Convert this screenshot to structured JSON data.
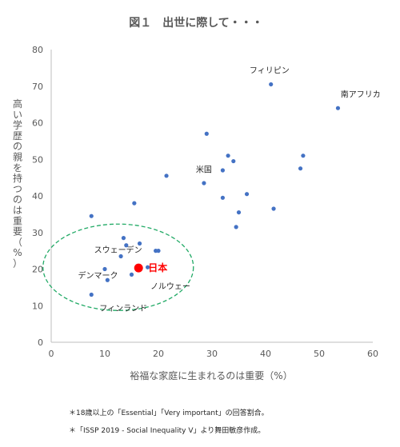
{
  "chart_data": {
    "type": "scatter",
    "title": "図１　出世に際して・・・",
    "xlabel": "裕福な家庭に生まれるのは重要（%）",
    "ylabel": "高い学歴の親を持つのは重要（%）",
    "xlim": [
      0,
      60
    ],
    "ylim": [
      0,
      80
    ],
    "x_ticks": [
      "0",
      "10",
      "20",
      "30",
      "40",
      "50",
      "60"
    ],
    "y_ticks": [
      "0",
      "10",
      "20",
      "30",
      "40",
      "50",
      "60",
      "70",
      "80"
    ],
    "grid": false,
    "points": [
      {
        "x": 7.5,
        "y": 34.5
      },
      {
        "x": 7.5,
        "y": 13
      },
      {
        "x": 10,
        "y": 20
      },
      {
        "x": 10.5,
        "y": 17
      },
      {
        "x": 13,
        "y": 23.5
      },
      {
        "x": 13.5,
        "y": 28.5
      },
      {
        "x": 14,
        "y": 26.5
      },
      {
        "x": 15,
        "y": 18.5
      },
      {
        "x": 15.5,
        "y": 38
      },
      {
        "x": 16.5,
        "y": 27
      },
      {
        "x": 18,
        "y": 20.5
      },
      {
        "x": 19.5,
        "y": 25
      },
      {
        "x": 20,
        "y": 25
      },
      {
        "x": 21.5,
        "y": 45.5
      },
      {
        "x": 28.5,
        "y": 43.5
      },
      {
        "x": 29,
        "y": 57
      },
      {
        "x": 32,
        "y": 47
      },
      {
        "x": 32,
        "y": 39.5
      },
      {
        "x": 33,
        "y": 51
      },
      {
        "x": 34,
        "y": 49.5
      },
      {
        "x": 34.5,
        "y": 31.5
      },
      {
        "x": 35,
        "y": 35.5
      },
      {
        "x": 36.5,
        "y": 40.5
      },
      {
        "x": 41,
        "y": 70.5
      },
      {
        "x": 41.5,
        "y": 36.5
      },
      {
        "x": 46.5,
        "y": 47.5
      },
      {
        "x": 47,
        "y": 51
      },
      {
        "x": 53.5,
        "y": 64
      }
    ],
    "highlight": {
      "x": 16.3,
      "y": 20.3,
      "label": "日本",
      "color": "#ff0000"
    },
    "annotations": [
      {
        "text": "フィリピン",
        "x": 37,
        "y": 73.5
      },
      {
        "text": "南アフリカ",
        "x": 54,
        "y": 67
      },
      {
        "text": "米国",
        "x": 27,
        "y": 46.5
      },
      {
        "text": "スウェーデン",
        "x": 8,
        "y": 24.5
      },
      {
        "text": "デンマーク",
        "x": 5,
        "y": 17.5
      },
      {
        "text": "ノルウェー",
        "x": 18.5,
        "y": 14.5
      },
      {
        "text": "フィンランド",
        "x": 9,
        "y": 8.5
      }
    ],
    "point_color": "#4472c4",
    "ellipse_color": "#22aa66"
  },
  "notes": [
    "＊18歳以上の「Essential」「Very important」の回答割合。",
    "＊「ISSP 2019 - Social Inequality V」より舞田敏彦作成。"
  ]
}
